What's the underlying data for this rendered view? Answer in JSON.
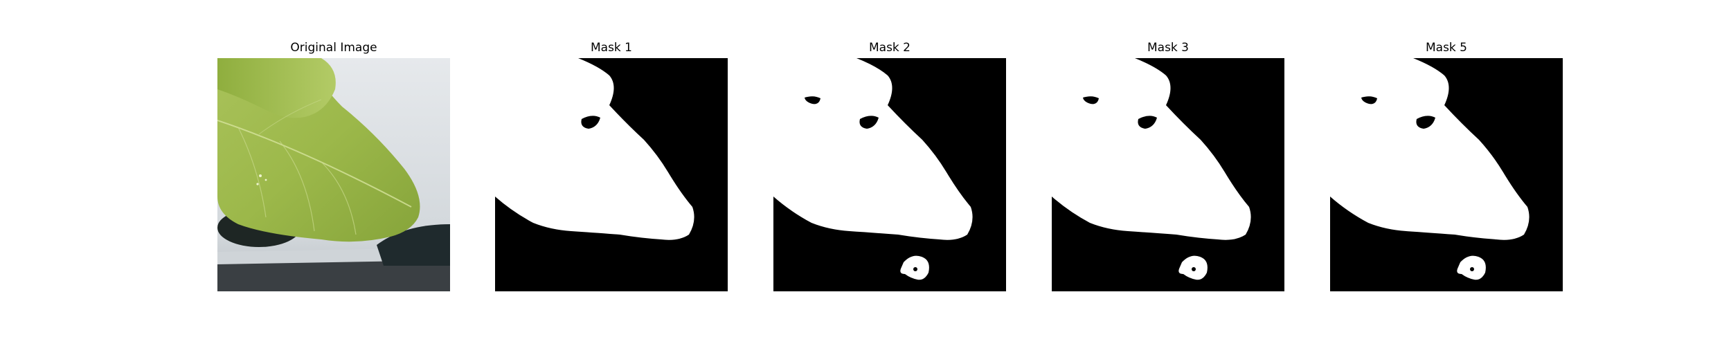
{
  "figure": {
    "panels": [
      {
        "title": "Original Image",
        "kind": "photo"
      },
      {
        "title": "Mask 1",
        "kind": "mask",
        "has_bottom_blob": false
      },
      {
        "title": "Mask 2",
        "kind": "mask",
        "has_bottom_blob": true
      },
      {
        "title": "Mask 3",
        "kind": "mask",
        "has_bottom_blob": true
      },
      {
        "title": "Mask 5",
        "kind": "mask",
        "has_bottom_blob": true
      }
    ],
    "colors": {
      "mask_foreground": "#ffffff",
      "mask_background": "#000000",
      "leaf_light": "#b4c96a",
      "leaf_dark": "#7f9a34",
      "background_grey": "#d9dde0"
    }
  }
}
